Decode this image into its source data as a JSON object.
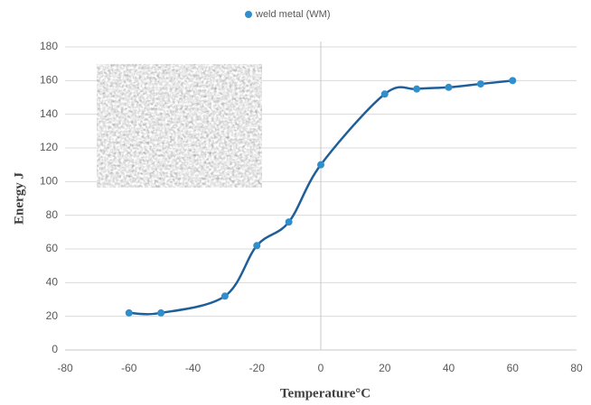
{
  "chart_data": {
    "type": "scatter",
    "x_label": "Temperature°C",
    "y_label": "Energy J",
    "series": [
      {
        "name": "weld metal (WM)",
        "color": "#2e8fcc",
        "trend_color": "#1f5f99",
        "x": [
          -60,
          -50,
          -30,
          -20,
          -10,
          0,
          20,
          30,
          40,
          50,
          60
        ],
        "values": [
          22,
          22,
          32,
          62,
          76,
          110,
          152,
          155,
          156,
          158,
          160
        ]
      }
    ],
    "xlim": [
      -80,
      80
    ],
    "xticks": [
      -80,
      -60,
      -40,
      -20,
      0,
      20,
      40,
      60,
      80
    ],
    "ylim": [
      0,
      180
    ],
    "yticks": [
      0,
      20,
      40,
      60,
      80,
      100,
      120,
      140,
      160,
      180
    ],
    "grid": true,
    "legend": "top"
  }
}
